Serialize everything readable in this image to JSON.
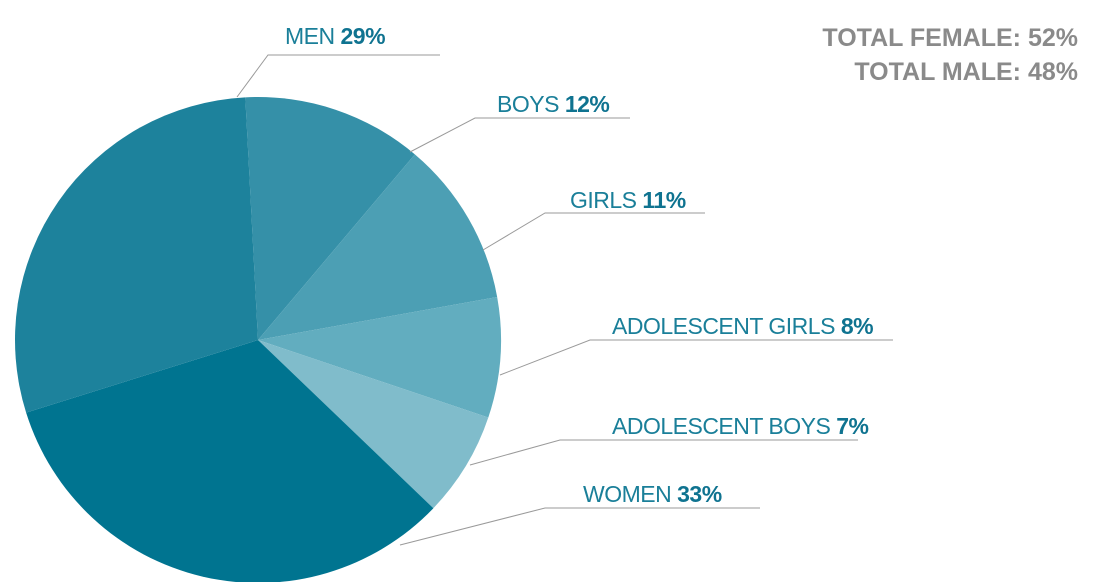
{
  "chart_data": {
    "type": "pie",
    "categories": [
      "BOYS",
      "GIRLS",
      "ADOLESCENT GIRLS",
      "ADOLESCENT BOYS",
      "WOMEN",
      "MEN"
    ],
    "values": [
      12,
      11,
      8,
      7,
      33,
      29
    ],
    "value_labels": [
      "12%",
      "11%",
      "8%",
      "7%",
      "33%",
      "29%"
    ],
    "colors": [
      "#3590a8",
      "#4c9fb4",
      "#62adbf",
      "#80bccb",
      "#007490",
      "#1d829c"
    ],
    "annotations": [
      "TOTAL FEMALE: 52%",
      "TOTAL MALE: 48%"
    ]
  }
}
